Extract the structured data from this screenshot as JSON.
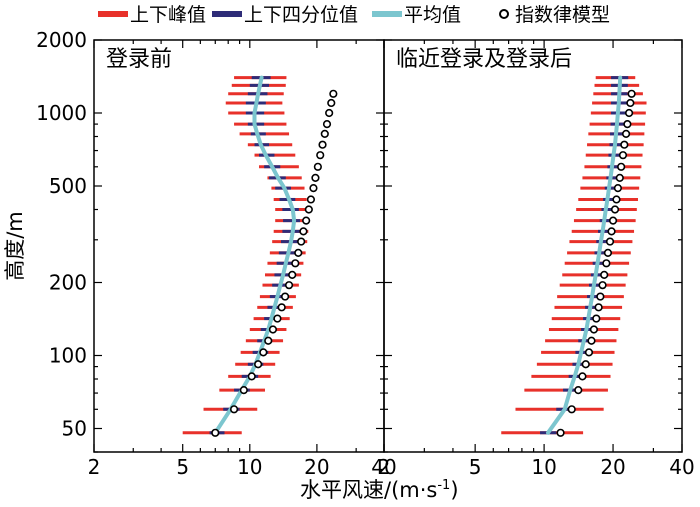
{
  "chart_data": {
    "type": "line",
    "xlabel": "水平风速/(m·s",
    "xlabel_sup": "-1",
    "xlabel_close": ")",
    "ylabel": "高度/m",
    "x_scale": "log",
    "y_scale": "log",
    "xlim": [
      2,
      40
    ],
    "ylim": [
      40,
      2000
    ],
    "x_ticks": [
      {
        "value": 2,
        "label": "2"
      },
      {
        "value": 5,
        "label": "5"
      },
      {
        "value": 10,
        "label": "10"
      },
      {
        "value": 20,
        "label": "20"
      },
      {
        "value": 40,
        "label": "40"
      }
    ],
    "y_ticks": [
      {
        "value": 50,
        "label": "50"
      },
      {
        "value": 100,
        "label": "100"
      },
      {
        "value": 200,
        "label": "200"
      },
      {
        "value": 500,
        "label": "500"
      },
      {
        "value": 1000,
        "label": "1000"
      },
      {
        "value": 2000,
        "label": "2000"
      }
    ],
    "legend": {
      "placement": "top",
      "items": [
        {
          "key": "peak",
          "label": "上下峰值",
          "color": "#e8312a",
          "marker": "line"
        },
        {
          "key": "quartile",
          "label": "上下四分位值",
          "color": "#2e2c78",
          "marker": "line"
        },
        {
          "key": "mean",
          "label": "平均值",
          "color": "#7cc6cf",
          "marker": "line"
        },
        {
          "key": "power_law",
          "label": "指数律模型",
          "color": "#000000",
          "marker": "circle"
        }
      ]
    },
    "panels": [
      {
        "title": "登录前",
        "heights": [
          48,
          60,
          72,
          82,
          92,
          103,
          115,
          128,
          142,
          158,
          175,
          195,
          215,
          240,
          265,
          295,
          325,
          360,
          400,
          440,
          490,
          540,
          600,
          670,
          740,
          820,
          900,
          1000,
          1100,
          1200,
          1300,
          1400
        ],
        "peak_low": [
          5.0,
          6.2,
          7.3,
          8.0,
          8.6,
          9.1,
          9.6,
          10.0,
          10.4,
          10.8,
          11.1,
          11.4,
          11.7,
          12.0,
          12.3,
          12.6,
          12.8,
          13.0,
          13.0,
          12.8,
          12.5,
          12.0,
          11.0,
          10.5,
          9.8,
          9.0,
          8.5,
          8.0,
          7.8,
          8.0,
          8.3,
          8.5
        ],
        "quartile_low": [
          6.6,
          7.6,
          8.5,
          9.2,
          9.8,
          10.3,
          10.8,
          11.2,
          11.6,
          12.0,
          12.3,
          12.6,
          12.9,
          13.2,
          13.5,
          13.8,
          14.0,
          14.1,
          14.0,
          13.6,
          13.0,
          12.2,
          11.6,
          11.0,
          10.5,
          10.1,
          9.8,
          9.6,
          9.6,
          9.8,
          10.0,
          10.2
        ],
        "mean": [
          7.0,
          8.2,
          9.2,
          10.0,
          10.6,
          11.1,
          11.6,
          12.1,
          12.5,
          12.9,
          13.3,
          13.7,
          14.1,
          14.5,
          14.9,
          15.3,
          15.6,
          15.8,
          15.6,
          15.0,
          14.3,
          13.4,
          12.6,
          11.8,
          11.2,
          10.8,
          10.5,
          10.5,
          10.7,
          10.9,
          11.1,
          11.3
        ],
        "quartile_high": [
          7.7,
          9.0,
          10.0,
          10.9,
          11.5,
          12.1,
          12.6,
          13.1,
          13.6,
          14.0,
          14.4,
          14.8,
          15.2,
          15.6,
          16.0,
          16.4,
          16.7,
          16.8,
          16.6,
          16.0,
          15.3,
          14.5,
          13.7,
          12.9,
          12.2,
          11.8,
          11.6,
          11.6,
          11.8,
          12.0,
          12.2,
          12.4
        ],
        "peak_high": [
          9.2,
          10.8,
          11.7,
          12.4,
          13.0,
          13.6,
          14.1,
          14.6,
          15.1,
          15.6,
          16.1,
          16.6,
          17.0,
          17.4,
          17.8,
          18.1,
          18.3,
          18.4,
          18.3,
          18.0,
          17.6,
          17.1,
          16.6,
          16.0,
          15.5,
          15.0,
          14.6,
          14.3,
          14.0,
          14.2,
          14.5,
          14.6
        ],
        "model_heights": [
          48,
          60,
          72,
          82,
          92,
          103,
          115,
          128,
          142,
          158,
          175,
          195,
          215,
          240,
          265,
          295,
          325,
          360,
          400,
          440,
          490,
          540,
          600,
          670,
          740,
          820,
          900,
          1000,
          1100,
          1200
        ],
        "model_speeds": [
          7.0,
          8.5,
          9.4,
          10.2,
          10.9,
          11.5,
          12.1,
          12.7,
          13.3,
          13.9,
          14.4,
          15.0,
          15.5,
          16.0,
          16.5,
          17.0,
          17.4,
          17.9,
          18.4,
          18.8,
          19.3,
          19.7,
          20.2,
          20.7,
          21.2,
          21.7,
          22.2,
          22.7,
          23.2,
          23.7
        ]
      },
      {
        "title": "临近登录及登录后",
        "heights": [
          48,
          60,
          72,
          82,
          92,
          103,
          115,
          128,
          142,
          158,
          175,
          195,
          215,
          240,
          265,
          295,
          325,
          360,
          400,
          440,
          490,
          540,
          600,
          670,
          740,
          820,
          900,
          1000,
          1100,
          1200,
          1300,
          1400
        ],
        "peak_low": [
          6.5,
          7.5,
          8.2,
          8.8,
          9.3,
          9.7,
          10.1,
          10.5,
          10.8,
          11.1,
          11.4,
          11.7,
          12.0,
          12.3,
          12.6,
          12.9,
          13.2,
          13.5,
          13.8,
          14.1,
          14.4,
          14.7,
          15.0,
          15.2,
          15.4,
          15.6,
          15.8,
          16.0,
          16.2,
          16.4,
          16.6,
          16.8
        ],
        "quartile_low": [
          9.6,
          11.3,
          12.1,
          12.8,
          13.3,
          13.7,
          14.1,
          14.5,
          14.8,
          15.1,
          15.4,
          15.7,
          16.0,
          16.3,
          16.6,
          16.9,
          17.2,
          17.5,
          17.8,
          18.1,
          18.4,
          18.7,
          18.9,
          19.1,
          19.3,
          19.4,
          19.5,
          19.6,
          19.6,
          19.6,
          19.6,
          19.6
        ],
        "mean": [
          10.4,
          12.3,
          13.0,
          13.6,
          14.1,
          14.5,
          14.9,
          15.3,
          15.6,
          15.9,
          16.2,
          16.5,
          16.8,
          17.1,
          17.4,
          17.7,
          18.0,
          18.3,
          18.6,
          18.9,
          19.2,
          19.5,
          19.8,
          20.1,
          20.4,
          20.6,
          20.8,
          21.0,
          21.2,
          21.3,
          21.4,
          21.5
        ],
        "quartile_high": [
          11.3,
          13.0,
          13.8,
          14.4,
          14.9,
          15.3,
          15.8,
          16.2,
          16.6,
          17.0,
          17.4,
          17.8,
          18.2,
          18.6,
          19.0,
          19.4,
          19.7,
          20.0,
          20.3,
          20.6,
          20.9,
          21.2,
          21.5,
          21.8,
          22.1,
          22.4,
          22.6,
          22.8,
          23.0,
          23.1,
          23.2,
          23.3
        ],
        "peak_high": [
          14.8,
          18.2,
          19.0,
          19.5,
          19.9,
          20.3,
          20.7,
          21.1,
          21.5,
          21.9,
          22.3,
          22.7,
          23.1,
          23.5,
          23.9,
          24.3,
          24.7,
          25.1,
          25.4,
          25.7,
          26.0,
          26.3,
          26.6,
          26.9,
          27.2,
          27.4,
          27.6,
          27.8,
          28.0,
          27.0,
          26.0,
          25.0
        ],
        "model_heights": [
          48,
          60,
          72,
          82,
          92,
          103,
          115,
          128,
          142,
          158,
          175,
          195,
          215,
          240,
          265,
          295,
          325,
          360,
          400,
          440,
          490,
          540,
          600,
          670,
          740,
          820,
          900,
          1000,
          1100,
          1200
        ],
        "model_speeds": [
          11.8,
          13.2,
          14.1,
          14.7,
          15.2,
          15.7,
          16.1,
          16.5,
          16.9,
          17.3,
          17.6,
          18.0,
          18.3,
          18.7,
          19.0,
          19.4,
          19.7,
          20.0,
          20.4,
          20.7,
          21.0,
          21.4,
          21.7,
          22.1,
          22.4,
          22.8,
          23.1,
          23.5,
          23.8,
          24.1
        ]
      }
    ]
  }
}
